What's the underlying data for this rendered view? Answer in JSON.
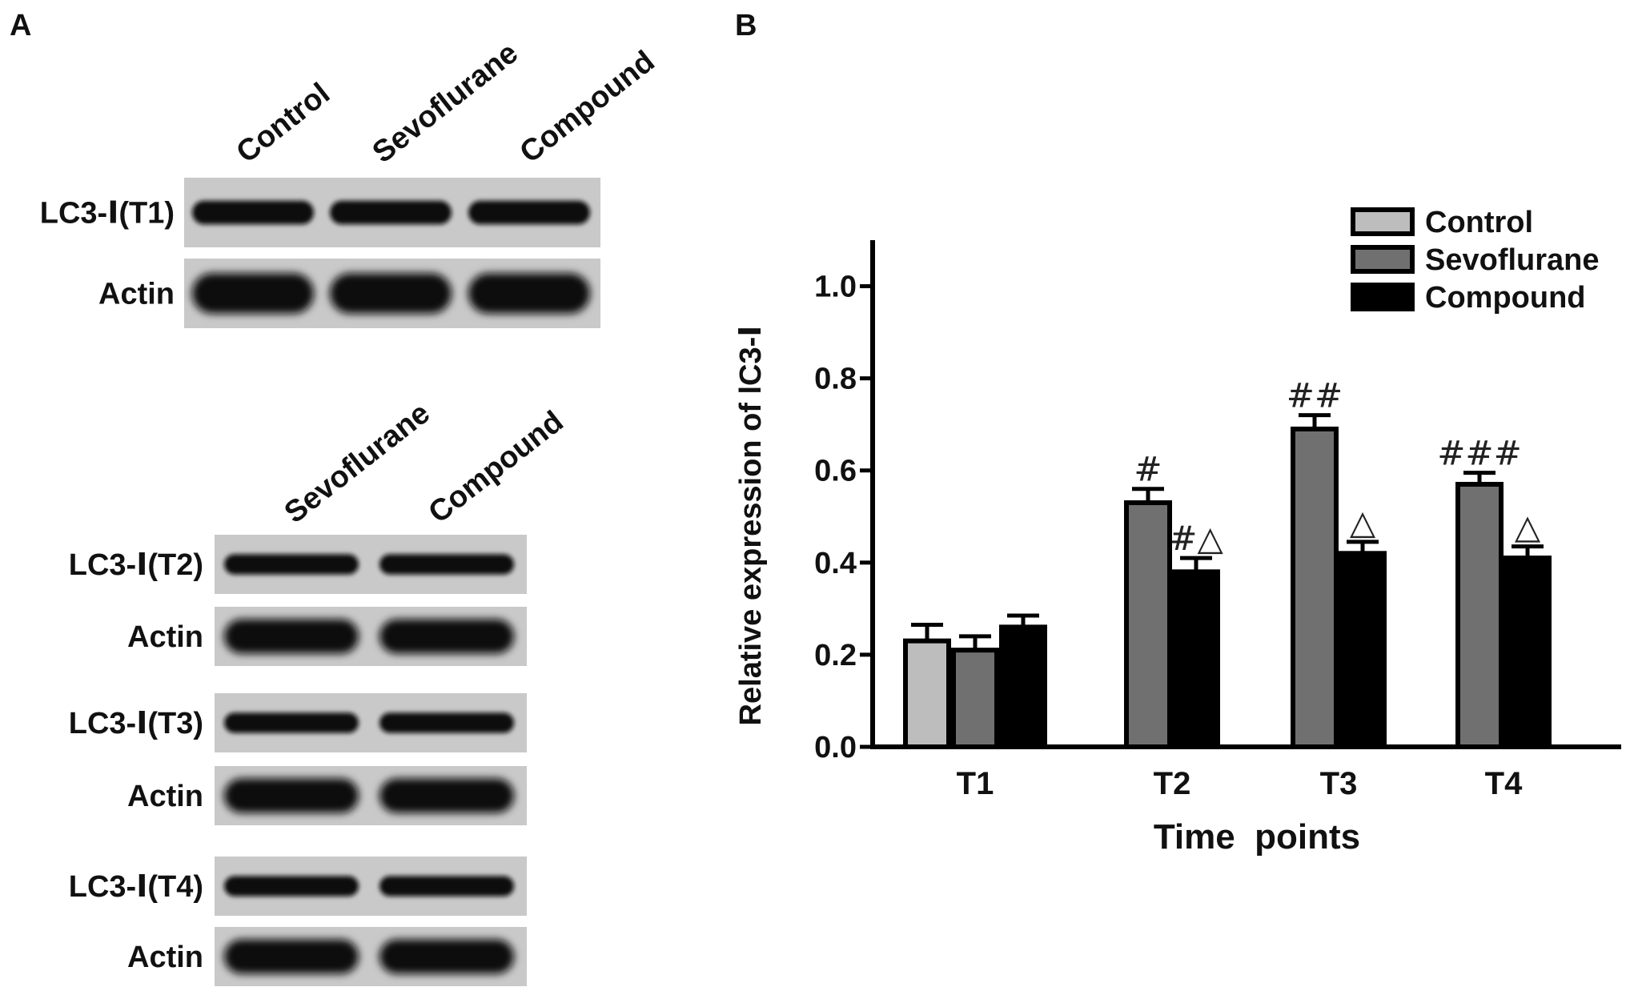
{
  "panel_a": {
    "label": "A",
    "blot_top": {
      "lanes": [
        "Control",
        "Sevoflurane",
        "Compound"
      ],
      "rows": [
        {
          "label": "LC3-Ⅰ(T1)",
          "type": "lc3"
        },
        {
          "label": "Actin",
          "type": "actin"
        }
      ]
    },
    "blot_bottom": {
      "lanes": [
        "Sevoflurane",
        "Compound"
      ],
      "rows": [
        {
          "label": "LC3-Ⅰ(T2)",
          "type": "lc3"
        },
        {
          "label": "Actin",
          "type": "actin"
        },
        {
          "label": "LC3-Ⅰ(T3)",
          "type": "lc3"
        },
        {
          "label": "Actin",
          "type": "actin"
        },
        {
          "label": "LC3-Ⅰ(T4)",
          "type": "lc3"
        },
        {
          "label": "Actin",
          "type": "actin"
        }
      ]
    }
  },
  "panel_b": {
    "label": "B"
  },
  "chart_data": {
    "type": "bar",
    "title": "",
    "xlabel": "Time  points",
    "ylabel": "Relative expression of lC3-Ⅰ",
    "ylim": [
      0,
      1.1
    ],
    "yticks": [
      "0.0",
      "0.2",
      "0.4",
      "0.6",
      "0.8",
      "1.0"
    ],
    "categories": [
      "T1",
      "T2",
      "T3",
      "T4"
    ],
    "legend_position": "top-right",
    "series": [
      {
        "name": "Control",
        "color": "#bdbdbd",
        "values": [
          0.23,
          null,
          null,
          null
        ],
        "errors": [
          0.035,
          null,
          null,
          null
        ],
        "annotations": [
          "",
          "",
          "",
          ""
        ]
      },
      {
        "name": "Sevoflurane",
        "color": "#707070",
        "values": [
          0.21,
          0.53,
          0.69,
          0.57
        ],
        "errors": [
          0.03,
          0.03,
          0.03,
          0.025
        ],
        "annotations": [
          "",
          "#",
          "##",
          "###"
        ]
      },
      {
        "name": "Compound",
        "color": "#000000",
        "values": [
          0.26,
          0.38,
          0.42,
          0.41
        ],
        "errors": [
          0.025,
          0.03,
          0.025,
          0.025
        ],
        "annotations": [
          "",
          "#△",
          "△",
          "△"
        ]
      }
    ]
  }
}
